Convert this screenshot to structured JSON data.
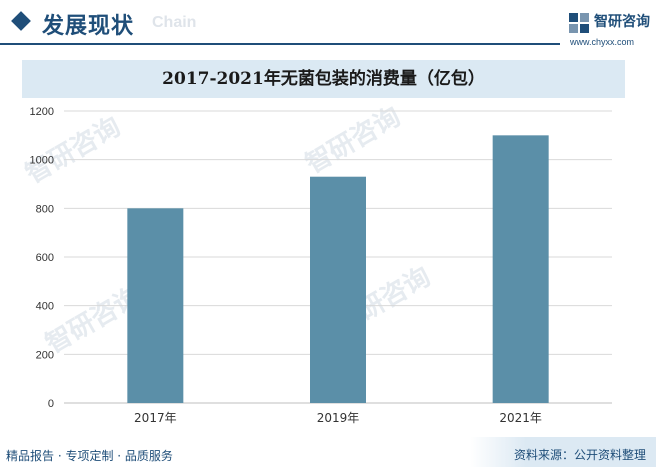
{
  "header": {
    "title": "发展现状",
    "watermark_text": "Chain"
  },
  "logo": {
    "name": "智研咨询",
    "url": "www.chyxx.com"
  },
  "watermarks": [
    "智研咨询",
    "智研咨询",
    "智研咨询",
    "智研咨询"
  ],
  "footer": {
    "left": "精品报告 · 专项定制 · 品质服务",
    "source": "资料来源：公开资料整理"
  },
  "colors": {
    "bar": "#5b8fa8",
    "accent": "#1f4e79",
    "title_band": "#dbe9f3",
    "grid": "#d9d9d9"
  },
  "chart_data": {
    "type": "bar",
    "title": "2017-2021年无菌包装的消费量（亿包）",
    "categories": [
      "2017年",
      "2019年",
      "2021年"
    ],
    "values": [
      800,
      930,
      1100
    ],
    "ylim": [
      0,
      1200
    ],
    "yticks": [
      0,
      200,
      400,
      600,
      800,
      1000,
      1200
    ],
    "ytick_labels": [
      "0",
      "200",
      "400",
      "600",
      "800",
      "1000",
      "1200"
    ],
    "xlabel": "",
    "ylabel": "",
    "grid": true,
    "legend": "none"
  }
}
